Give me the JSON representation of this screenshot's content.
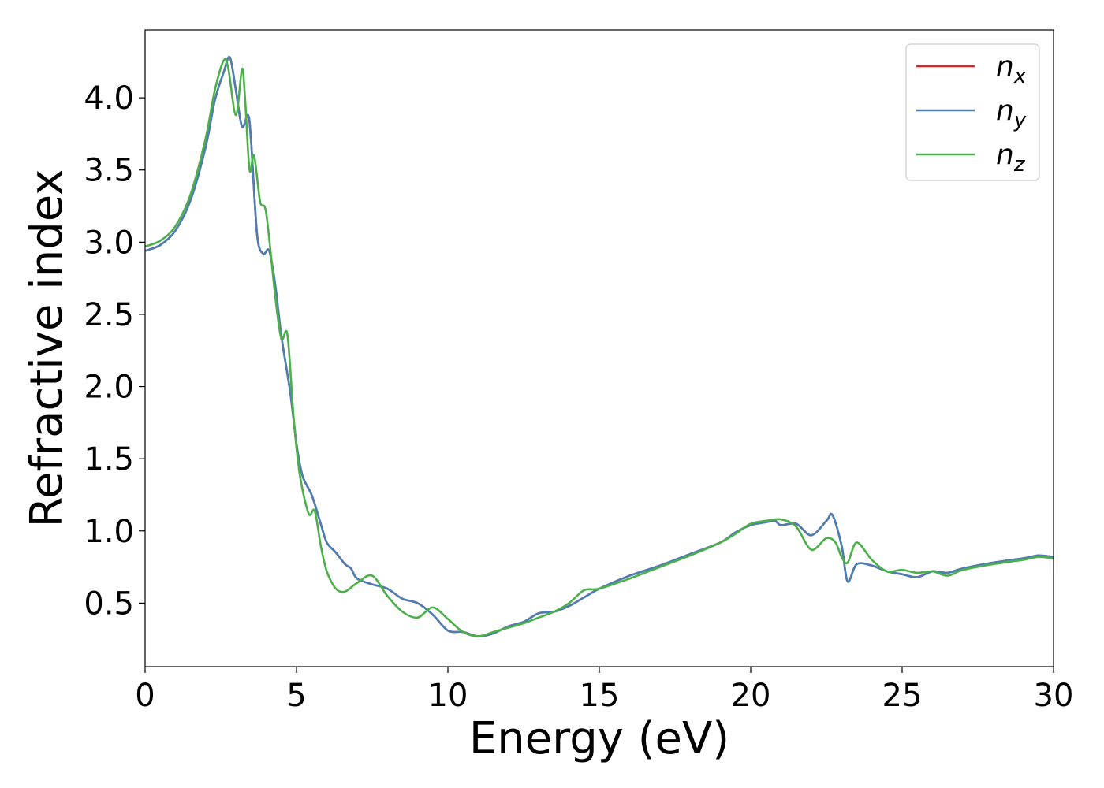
{
  "chart_data": {
    "type": "line",
    "title": "",
    "xlabel": "Energy (eV)",
    "ylabel": "Refractive index",
    "xlim": [
      0,
      30
    ],
    "ylim": [
      0.06,
      4.47
    ],
    "xticks": [
      "0",
      "5",
      "10",
      "15",
      "20",
      "25",
      "30"
    ],
    "yticks": [
      "0.5",
      "1.0",
      "1.5",
      "2.0",
      "2.5",
      "3.0",
      "3.5",
      "4.0"
    ],
    "grid": false,
    "legend_position": "top-right",
    "series": [
      {
        "name": "n_x",
        "label_base": "n",
        "label_sub": "x",
        "color": "#d62728",
        "x": [
          0,
          0.5,
          1.0,
          1.5,
          2.0,
          2.3,
          2.6,
          2.8,
          3.0,
          3.2,
          3.4,
          3.5,
          3.7,
          3.9,
          4.1,
          4.3,
          4.5,
          4.8,
          5.0,
          5.2,
          5.5,
          5.8,
          6.0,
          6.3,
          6.6,
          6.8,
          7.0,
          7.5,
          8.0,
          8.5,
          9.0,
          9.5,
          10.0,
          10.5,
          11.0,
          11.5,
          12.0,
          12.5,
          13.0,
          13.5,
          14.0,
          14.5,
          15.0,
          16.0,
          17.0,
          18.0,
          19.0,
          19.5,
          20.0,
          20.5,
          20.8,
          21.0,
          21.5,
          22.0,
          22.5,
          22.7,
          23.0,
          23.2,
          23.5,
          24.0,
          24.5,
          25.0,
          25.5,
          26.0,
          26.5,
          27.0,
          28.0,
          29.0,
          29.5,
          30.0
        ],
        "values": [
          2.94,
          2.98,
          3.08,
          3.29,
          3.66,
          3.98,
          4.18,
          4.28,
          4.05,
          3.8,
          3.88,
          3.7,
          3.05,
          2.92,
          2.94,
          2.7,
          2.35,
          1.95,
          1.6,
          1.38,
          1.25,
          1.05,
          0.92,
          0.85,
          0.77,
          0.74,
          0.67,
          0.63,
          0.6,
          0.53,
          0.5,
          0.42,
          0.31,
          0.3,
          0.27,
          0.29,
          0.34,
          0.37,
          0.43,
          0.44,
          0.48,
          0.54,
          0.6,
          0.69,
          0.76,
          0.84,
          0.92,
          0.99,
          1.04,
          1.06,
          1.07,
          1.04,
          1.05,
          0.97,
          1.07,
          1.11,
          0.9,
          0.65,
          0.77,
          0.76,
          0.72,
          0.7,
          0.68,
          0.72,
          0.71,
          0.74,
          0.78,
          0.81,
          0.83,
          0.82
        ]
      },
      {
        "name": "n_y",
        "label_base": "n",
        "label_sub": "y",
        "color": "#4a7fb5",
        "x": [
          0,
          0.5,
          1.0,
          1.5,
          2.0,
          2.3,
          2.6,
          2.8,
          3.0,
          3.2,
          3.4,
          3.5,
          3.7,
          3.9,
          4.1,
          4.3,
          4.5,
          4.8,
          5.0,
          5.2,
          5.5,
          5.8,
          6.0,
          6.3,
          6.6,
          6.8,
          7.0,
          7.5,
          8.0,
          8.5,
          9.0,
          9.5,
          10.0,
          10.5,
          11.0,
          11.5,
          12.0,
          12.5,
          13.0,
          13.5,
          14.0,
          14.5,
          15.0,
          16.0,
          17.0,
          18.0,
          19.0,
          19.5,
          20.0,
          20.5,
          20.8,
          21.0,
          21.5,
          22.0,
          22.5,
          22.7,
          23.0,
          23.2,
          23.5,
          24.0,
          24.5,
          25.0,
          25.5,
          26.0,
          26.5,
          27.0,
          28.0,
          29.0,
          29.5,
          30.0
        ],
        "values": [
          2.94,
          2.98,
          3.08,
          3.29,
          3.66,
          3.98,
          4.18,
          4.28,
          4.05,
          3.8,
          3.88,
          3.7,
          3.05,
          2.92,
          2.94,
          2.7,
          2.35,
          1.95,
          1.6,
          1.38,
          1.25,
          1.05,
          0.92,
          0.85,
          0.77,
          0.74,
          0.67,
          0.63,
          0.6,
          0.53,
          0.5,
          0.42,
          0.31,
          0.3,
          0.27,
          0.29,
          0.34,
          0.37,
          0.43,
          0.44,
          0.48,
          0.54,
          0.6,
          0.69,
          0.76,
          0.84,
          0.92,
          0.99,
          1.04,
          1.06,
          1.07,
          1.04,
          1.05,
          0.97,
          1.07,
          1.11,
          0.9,
          0.65,
          0.77,
          0.76,
          0.72,
          0.7,
          0.68,
          0.72,
          0.71,
          0.74,
          0.78,
          0.81,
          0.83,
          0.82
        ]
      },
      {
        "name": "n_z",
        "label_base": "n",
        "label_sub": "z",
        "color": "#4daf4a",
        "x": [
          0,
          0.5,
          1.0,
          1.5,
          2.0,
          2.3,
          2.6,
          2.75,
          3.0,
          3.2,
          3.3,
          3.45,
          3.6,
          3.8,
          4.0,
          4.3,
          4.5,
          4.7,
          4.9,
          5.1,
          5.4,
          5.6,
          5.8,
          6.0,
          6.3,
          6.6,
          7.0,
          7.5,
          8.0,
          8.5,
          9.0,
          9.5,
          10.0,
          10.5,
          11.0,
          11.5,
          12.0,
          12.5,
          13.0,
          13.5,
          14.0,
          14.5,
          15.0,
          16.0,
          17.0,
          18.0,
          19.0,
          19.5,
          20.0,
          20.5,
          21.0,
          21.5,
          22.0,
          22.5,
          22.8,
          23.0,
          23.2,
          23.5,
          24.0,
          24.5,
          25.0,
          25.5,
          26.0,
          26.5,
          27.0,
          28.0,
          29.0,
          29.5,
          30.0
        ],
        "values": [
          2.97,
          3.01,
          3.11,
          3.33,
          3.72,
          4.05,
          4.26,
          4.2,
          3.88,
          4.2,
          4.0,
          3.5,
          3.6,
          3.28,
          3.2,
          2.62,
          2.33,
          2.36,
          1.8,
          1.4,
          1.12,
          1.14,
          0.9,
          0.72,
          0.6,
          0.58,
          0.64,
          0.69,
          0.55,
          0.44,
          0.4,
          0.47,
          0.39,
          0.3,
          0.27,
          0.3,
          0.33,
          0.36,
          0.4,
          0.44,
          0.5,
          0.59,
          0.6,
          0.67,
          0.75,
          0.83,
          0.92,
          0.98,
          1.05,
          1.07,
          1.08,
          1.03,
          0.87,
          0.95,
          0.92,
          0.82,
          0.78,
          0.92,
          0.8,
          0.72,
          0.73,
          0.71,
          0.72,
          0.69,
          0.73,
          0.77,
          0.8,
          0.82,
          0.81
        ]
      }
    ]
  }
}
